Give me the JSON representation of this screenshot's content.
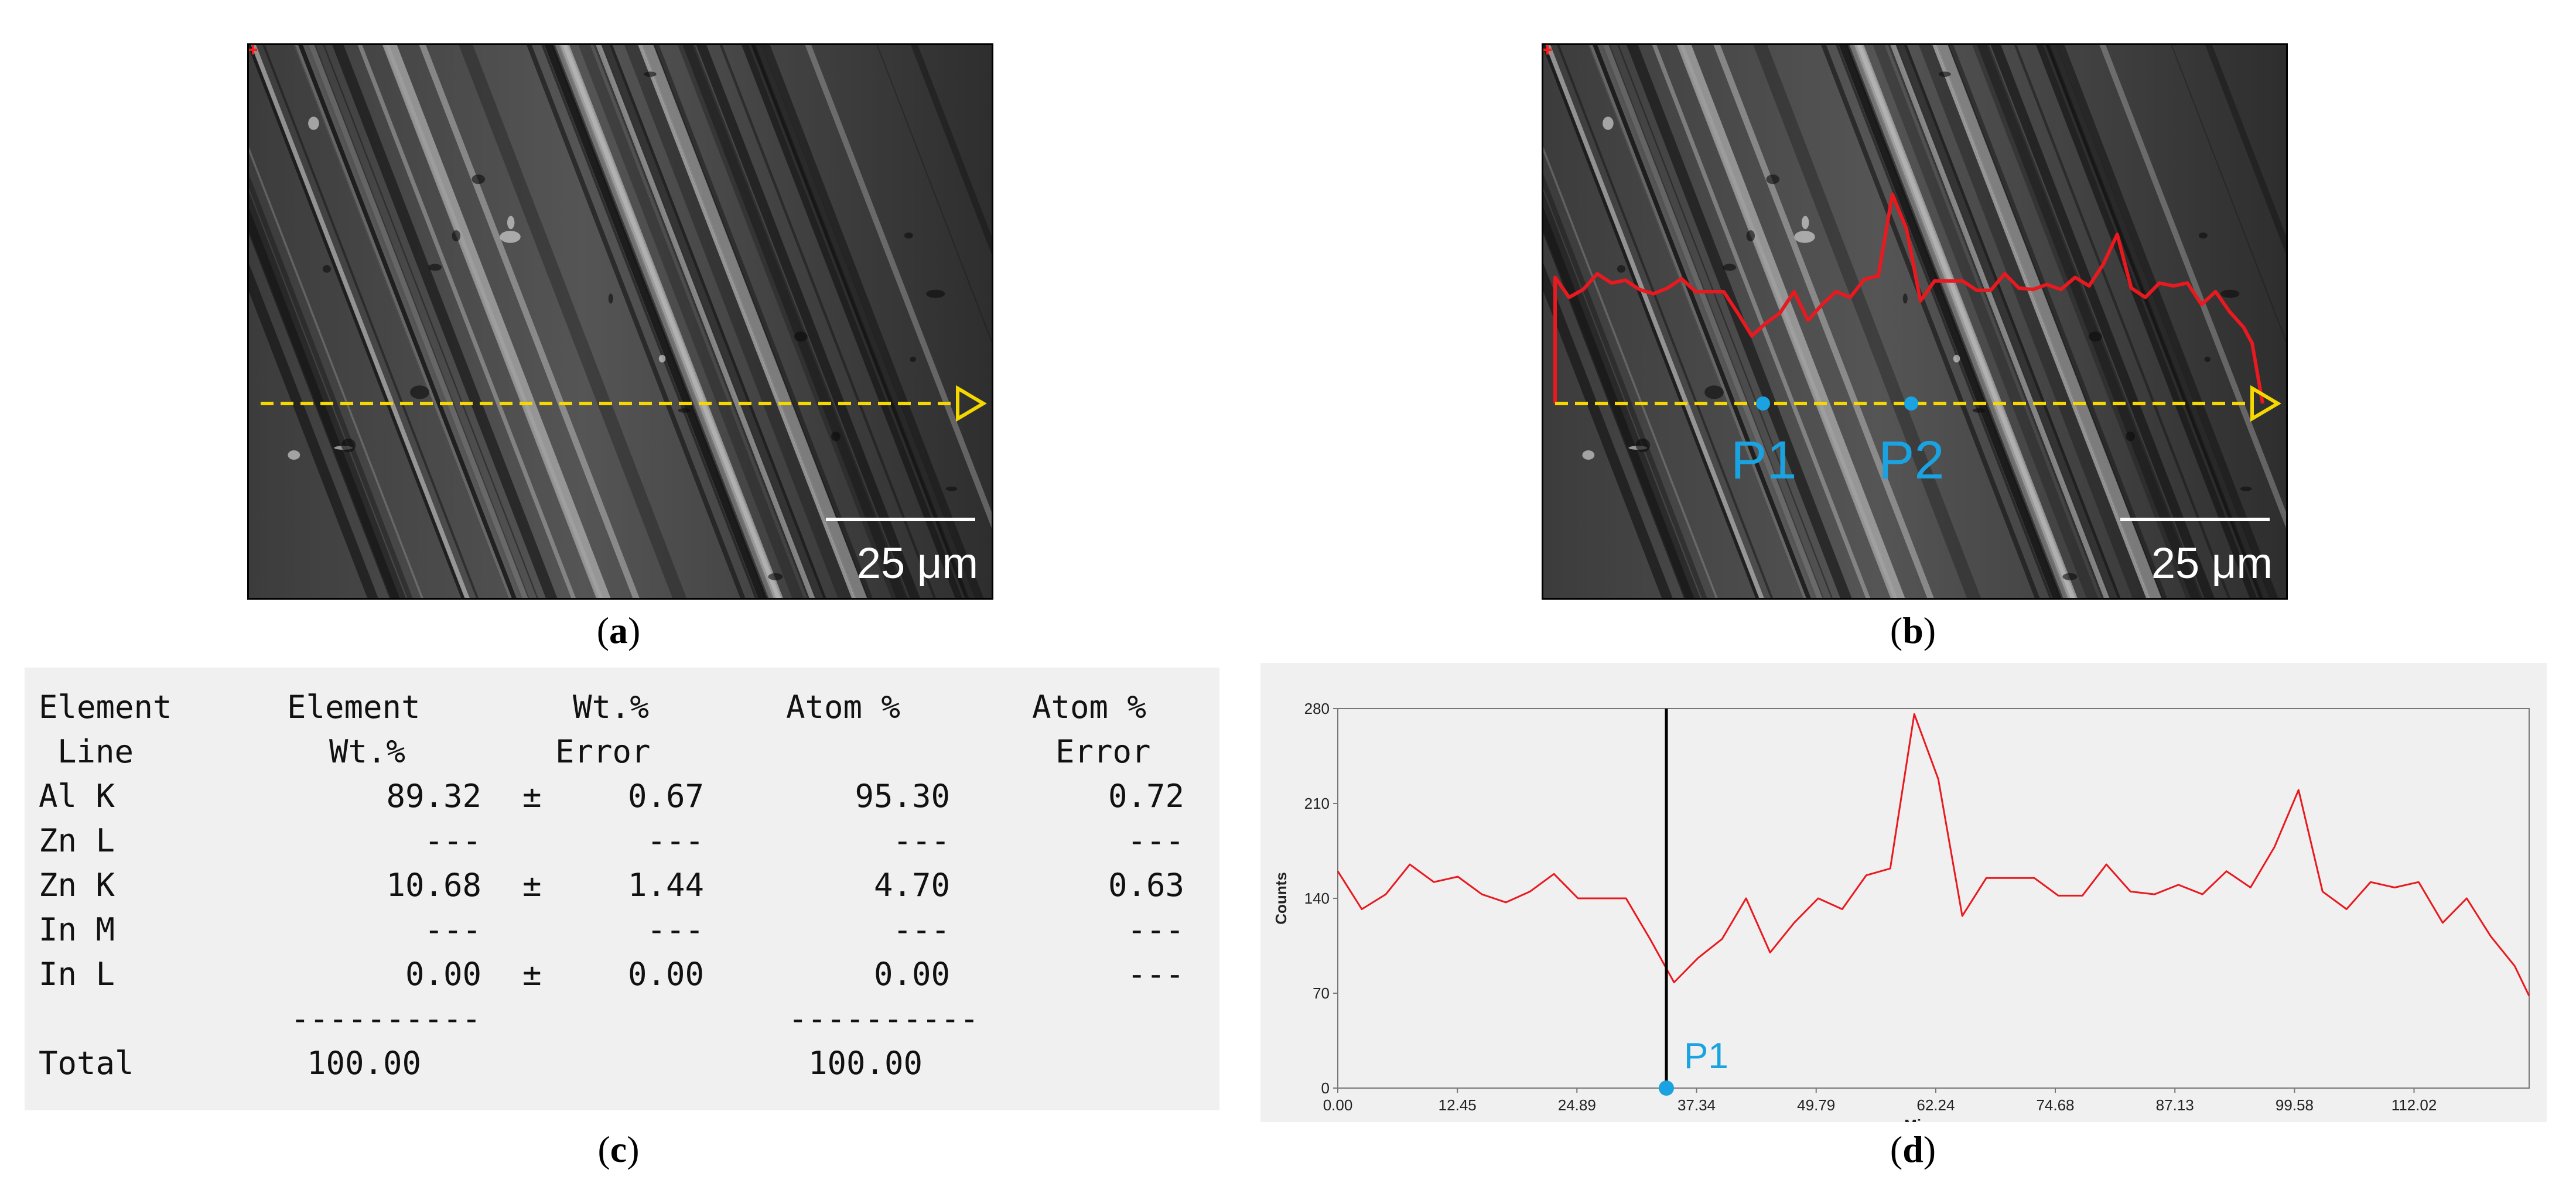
{
  "panels": {
    "a": {
      "caption_open": "(",
      "caption_letter": "a",
      "caption_close": ")",
      "scale_label": "25 μm"
    },
    "b": {
      "caption_open": "(",
      "caption_letter": "b",
      "caption_close": ")",
      "scale_label": "25 μm",
      "marker1": "P1",
      "marker2": "P2"
    },
    "c": {
      "caption_open": "(",
      "caption_letter": "c",
      "caption_close": ")"
    },
    "d": {
      "caption_open": "(",
      "caption_letter": "d",
      "caption_close": ")",
      "marker": "P1"
    }
  },
  "table": {
    "headers": [
      [
        "Element",
        "Line"
      ],
      [
        "Element",
        "Wt.%"
      ],
      [
        "Wt.%",
        "Error"
      ],
      [
        "Atom %",
        ""
      ],
      [
        "Atom %",
        "Error"
      ]
    ],
    "rows": [
      {
        "element": "Al K",
        "wt": "89.32",
        "pm": "±",
        "wt_err": "0.67",
        "atom": "95.30",
        "atom_err": "0.72"
      },
      {
        "element": "Zn L",
        "wt": "---",
        "pm": "",
        "wt_err": "---",
        "atom": "---",
        "atom_err": "---"
      },
      {
        "element": "Zn K",
        "wt": "10.68",
        "pm": "±",
        "wt_err": "1.44",
        "atom": "4.70",
        "atom_err": "0.63"
      },
      {
        "element": "In M",
        "wt": "---",
        "pm": "",
        "wt_err": "---",
        "atom": "---",
        "atom_err": "---"
      },
      {
        "element": "In L",
        "wt": "0.00",
        "pm": "±",
        "wt_err": "0.00",
        "atom": "0.00",
        "atom_err": "---"
      }
    ],
    "separator": "----------",
    "total_label": "Total",
    "total_wt": "100.00",
    "total_atom": "100.00"
  },
  "chart_data": {
    "type": "line",
    "xlabel": "Microns",
    "ylabel": "Counts",
    "xlim": [
      0,
      124
    ],
    "ylim": [
      0,
      280
    ],
    "x_ticks": [
      "0.00",
      "12.45",
      "24.89",
      "37.34",
      "49.79",
      "62.24",
      "74.68",
      "87.13",
      "99.58",
      "112.02"
    ],
    "y_ticks": [
      "0",
      "70",
      "140",
      "210",
      "280"
    ],
    "series": [
      {
        "color": "#e8191f",
        "x": [
          0.0,
          2.5,
          5.0,
          7.5,
          10.0,
          12.5,
          15.0,
          17.5,
          20.0,
          22.5,
          25.0,
          27.5,
          30.0,
          32.5,
          35.0,
          37.5,
          40.0,
          42.5,
          45.0,
          47.5,
          50.0,
          52.5,
          55.0,
          57.5,
          60.0,
          62.5,
          65.0,
          67.5,
          70.0,
          72.5,
          75.0,
          77.5,
          80.0,
          82.5,
          85.0,
          87.5,
          90.0,
          92.5,
          95.0,
          97.5,
          100.0,
          102.5,
          105.0,
          107.5,
          110.0,
          112.5,
          115.0,
          117.5,
          120.0,
          122.5,
          124.0
        ],
        "y": [
          160,
          132,
          143,
          165,
          152,
          156,
          143,
          137,
          145,
          158,
          140,
          140,
          140,
          110,
          78,
          96,
          110,
          140,
          100,
          122,
          140,
          132,
          157,
          162,
          276,
          228,
          127,
          155,
          155,
          155,
          142,
          142,
          165,
          145,
          143,
          150,
          143,
          160,
          148,
          178,
          220,
          145,
          132,
          152,
          148,
          152,
          122,
          140,
          112,
          90,
          68
        ]
      }
    ],
    "cursor_x": 34.2,
    "marker_label": "P1",
    "grid": false
  },
  "colors": {
    "profile_red": "#e8191f",
    "scan_line_yellow": "#f5d800",
    "marker_blue": "#1aa3e0"
  }
}
